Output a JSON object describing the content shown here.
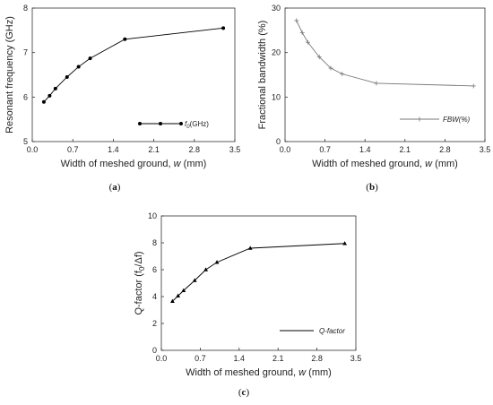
{
  "chart_data": [
    {
      "id": "a",
      "type": "line",
      "panel_label": "(a)",
      "xlabel": "Width of meshed ground, ",
      "xvar": "w",
      "xunit": " (mm)",
      "ylabel": "Resonant frequency (GHz)",
      "xlim": [
        0,
        3.5
      ],
      "ylim": [
        5,
        8
      ],
      "xticks": [
        0.0,
        0.7,
        1.4,
        2.1,
        2.8,
        3.5
      ],
      "xtick_labels": [
        "0.0",
        "0.7",
        "1.4",
        "2.1",
        "2.8",
        "3.5"
      ],
      "yticks": [
        5,
        6,
        7,
        8
      ],
      "ytick_labels": [
        "5",
        "6",
        "7",
        "8"
      ],
      "marker": "circle",
      "legend": {
        "position": "bottom-right",
        "symbol": "f",
        "subscript": "0",
        "suffix": "(GHz)"
      },
      "series": [
        {
          "x": [
            0.2,
            0.3,
            0.4,
            0.6,
            0.8,
            1.0,
            1.6,
            3.3
          ],
          "y": [
            5.89,
            6.03,
            6.19,
            6.45,
            6.68,
            6.87,
            7.3,
            7.55
          ]
        }
      ]
    },
    {
      "id": "b",
      "type": "line",
      "panel_label": "(b)",
      "xlabel": "Width of meshed ground, ",
      "xvar": "w",
      "xunit": " (mm)",
      "ylabel": "Fractional bandwidth (%)",
      "xlim": [
        0,
        3.5
      ],
      "ylim": [
        0,
        30
      ],
      "xticks": [
        0.0,
        0.7,
        1.4,
        2.1,
        2.8,
        3.5
      ],
      "xtick_labels": [
        "0.0",
        "0.7",
        "1.4",
        "2.1",
        "2.8",
        "3.5"
      ],
      "yticks": [
        0,
        10,
        20,
        30
      ],
      "ytick_labels": [
        "0",
        "10",
        "20",
        "30"
      ],
      "marker": "plus",
      "color": "#777777",
      "legend": {
        "position": "bottom-right",
        "text": "FBW(%)"
      },
      "series": [
        {
          "x": [
            0.2,
            0.3,
            0.4,
            0.6,
            0.8,
            1.0,
            1.6,
            3.3
          ],
          "y": [
            27.2,
            24.5,
            22.3,
            19.0,
            16.5,
            15.2,
            13.1,
            12.5
          ]
        }
      ]
    },
    {
      "id": "c",
      "type": "line",
      "panel_label": "(c)",
      "xlabel": "Width of meshed ground, ",
      "xvar": "w",
      "xunit": " (mm)",
      "ylabel": "Q-factor (f",
      "ylabel_sub": "0",
      "ylabel_end": "/Δf)",
      "xlim": [
        0,
        3.5
      ],
      "ylim": [
        0,
        10
      ],
      "xticks": [
        0.0,
        0.7,
        1.4,
        2.1,
        2.8,
        3.5
      ],
      "xtick_labels": [
        "0.0",
        "0.7",
        "1.4",
        "2.1",
        "2.8",
        "3.5"
      ],
      "yticks": [
        0,
        2,
        4,
        6,
        8,
        10
      ],
      "ytick_labels": [
        "0",
        "2",
        "4",
        "6",
        "8",
        "10"
      ],
      "marker": "triangle",
      "legend": {
        "position": "bottom-right",
        "text": "Q-factor"
      },
      "series": [
        {
          "x": [
            0.2,
            0.3,
            0.4,
            0.6,
            0.8,
            1.0,
            1.6,
            3.3
          ],
          "y": [
            3.65,
            4.05,
            4.45,
            5.2,
            6.0,
            6.55,
            7.6,
            7.95
          ]
        }
      ]
    }
  ]
}
